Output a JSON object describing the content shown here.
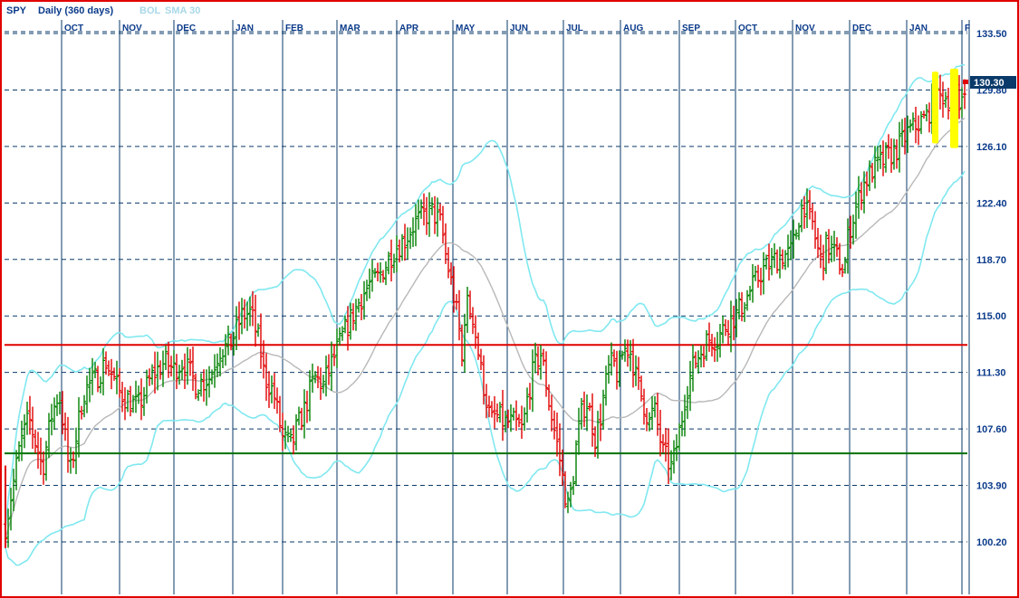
{
  "header": {
    "symbol": "SPY",
    "period": "Daily (360 days)",
    "indicator1": "BOL",
    "indicator2": "SMA 30"
  },
  "colors": {
    "frame": "#e00000",
    "up_bar": "#008000",
    "down_bar": "#e00000",
    "bollinger": "#80e8f0",
    "sma": "#b8b8b8",
    "grid": "#0a3a6a",
    "resistance_line": "#e00000",
    "support_line": "#007000",
    "highlight": "#ffff00",
    "header_text": "#0a3a8a",
    "header_dim": "#a8d8e8",
    "last_price_bg": "#0a3a6a"
  },
  "chart_data": {
    "type": "ohlc",
    "months": [
      "OCT",
      "NOV",
      "DEC",
      "JAN",
      "FEB",
      "MAR",
      "APR",
      "MAY",
      "JUN",
      "JUL",
      "AUG",
      "SEP",
      "OCT",
      "NOV",
      "DEC",
      "JAN",
      "F"
    ],
    "y_ticks": [
      133.5,
      129.8,
      126.1,
      122.4,
      118.7,
      115.0,
      111.3,
      107.6,
      103.9,
      100.2
    ],
    "y_tick_labels": [
      "133.50",
      "129.80",
      "126.10",
      "122.40",
      "118.70",
      "115.00",
      "111.30",
      "107.60",
      "103.90",
      "100.20"
    ],
    "ylim": [
      97.8,
      135.5
    ],
    "last_price": 130.3,
    "last_price_label": "130.30",
    "resistance_level": 113.1,
    "support_level": 106.0,
    "overlays": [
      "BOL",
      "SMA 30"
    ],
    "anchors": [
      [
        0,
        100.0
      ],
      [
        5,
        101.5
      ],
      [
        20,
        106.5
      ],
      [
        30,
        108.3
      ],
      [
        45,
        105.0
      ],
      [
        55,
        108.5
      ],
      [
        63,
        110.0
      ],
      [
        70,
        107.0
      ],
      [
        75,
        104.5
      ],
      [
        90,
        110.0
      ],
      [
        105,
        111.0
      ],
      [
        115,
        112.0
      ],
      [
        130,
        110.0
      ],
      [
        150,
        109.0
      ],
      [
        165,
        111.0
      ],
      [
        180,
        112.0
      ],
      [
        190,
        111.5
      ],
      [
        200,
        112.0
      ],
      [
        215,
        110.5
      ],
      [
        230,
        111.0
      ],
      [
        240,
        112.8
      ],
      [
        250,
        113.0
      ],
      [
        255,
        113.5
      ],
      [
        265,
        115.0
      ],
      [
        275,
        115.2
      ],
      [
        285,
        113.0
      ],
      [
        290,
        111.0
      ],
      [
        300,
        110.0
      ],
      [
        310,
        107.0
      ],
      [
        320,
        106.5
      ],
      [
        325,
        107.5
      ],
      [
        335,
        109.0
      ],
      [
        345,
        111.0
      ],
      [
        355,
        110.5
      ],
      [
        365,
        112.0
      ],
      [
        375,
        113.5
      ],
      [
        385,
        114.8
      ],
      [
        395,
        116.0
      ],
      [
        405,
        117.0
      ],
      [
        415,
        117.5
      ],
      [
        425,
        118.5
      ],
      [
        435,
        119.5
      ],
      [
        445,
        120.0
      ],
      [
        455,
        121.0
      ],
      [
        465,
        121.5
      ],
      [
        475,
        121.8
      ],
      [
        485,
        121.0
      ],
      [
        490,
        119.0
      ],
      [
        495,
        117.5
      ],
      [
        500,
        116.0
      ],
      [
        505,
        114.0
      ],
      [
        508,
        112.0
      ],
      [
        512,
        116.0
      ],
      [
        520,
        115.0
      ],
      [
        525,
        113.0
      ],
      [
        530,
        111.0
      ],
      [
        535,
        109.5
      ],
      [
        540,
        108.0
      ],
      [
        545,
        108.5
      ],
      [
        555,
        108.0
      ],
      [
        565,
        108.0
      ],
      [
        575,
        107.5
      ],
      [
        580,
        109.5
      ],
      [
        585,
        111.0
      ],
      [
        590,
        112.0
      ],
      [
        595,
        112.5
      ],
      [
        600,
        111.0
      ],
      [
        605,
        109.0
      ],
      [
        610,
        107.5
      ],
      [
        615,
        106.0
      ],
      [
        620,
        104.0
      ],
      [
        625,
        102.5
      ],
      [
        630,
        104.0
      ],
      [
        635,
        107.0
      ],
      [
        640,
        108.5
      ],
      [
        645,
        109.5
      ],
      [
        650,
        108.5
      ],
      [
        655,
        107.0
      ],
      [
        660,
        108.0
      ],
      [
        665,
        110.0
      ],
      [
        670,
        111.5
      ],
      [
        675,
        112.0
      ],
      [
        680,
        111.0
      ],
      [
        685,
        112.5
      ],
      [
        690,
        113.0
      ],
      [
        695,
        112.5
      ],
      [
        700,
        111.0
      ],
      [
        705,
        110.0
      ],
      [
        710,
        109.0
      ],
      [
        715,
        108.0
      ],
      [
        720,
        109.0
      ],
      [
        725,
        107.5
      ],
      [
        730,
        106.0
      ],
      [
        735,
        105.5
      ],
      [
        740,
        105.0
      ],
      [
        745,
        106.5
      ],
      [
        750,
        108.0
      ],
      [
        755,
        110.0
      ],
      [
        760,
        111.0
      ],
      [
        765,
        112.0
      ],
      [
        770,
        112.5
      ],
      [
        780,
        113.5
      ],
      [
        790,
        113.5
      ],
      [
        800,
        114.5
      ],
      [
        810,
        115.0
      ],
      [
        820,
        116.0
      ],
      [
        830,
        117.0
      ],
      [
        840,
        118.0
      ],
      [
        850,
        118.5
      ],
      [
        860,
        119.0
      ],
      [
        870,
        119.0
      ],
      [
        875,
        120.0
      ],
      [
        880,
        121.5
      ],
      [
        885,
        122.5
      ],
      [
        890,
        121.5
      ],
      [
        895,
        121.0
      ],
      [
        900,
        119.5
      ],
      [
        905,
        118.5
      ],
      [
        910,
        119.5
      ],
      [
        915,
        119.5
      ],
      [
        920,
        119.0
      ],
      [
        925,
        118.5
      ],
      [
        930,
        118.0
      ],
      [
        935,
        120.5
      ],
      [
        940,
        121.5
      ],
      [
        945,
        122.5
      ],
      [
        950,
        123.5
      ],
      [
        960,
        124.5
      ],
      [
        970,
        125.0
      ],
      [
        980,
        125.5
      ],
      [
        990,
        126.0
      ],
      [
        1000,
        127.0
      ],
      [
        1010,
        127.5
      ],
      [
        1020,
        128.0
      ],
      [
        1030,
        129.0
      ],
      [
        1040,
        129.5
      ],
      [
        1048,
        129.0
      ],
      [
        1052,
        130.5
      ],
      [
        1057,
        128.5
      ],
      [
        1062,
        130.3
      ]
    ]
  }
}
